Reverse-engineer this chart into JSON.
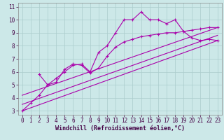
{
  "xlabel": "Windchill (Refroidissement éolien,°C)",
  "bg_color": "#cce8e8",
  "grid_color": "#aacccc",
  "line_color": "#aa00aa",
  "xlim": [
    -0.5,
    23.5
  ],
  "ylim": [
    2.7,
    11.3
  ],
  "xticks": [
    0,
    1,
    2,
    3,
    4,
    5,
    6,
    7,
    8,
    9,
    10,
    11,
    12,
    13,
    14,
    15,
    16,
    17,
    18,
    19,
    20,
    21,
    22,
    23
  ],
  "yticks": [
    3,
    4,
    5,
    6,
    7,
    8,
    9,
    10,
    11
  ],
  "series1_x": [
    0,
    1,
    2,
    3,
    4,
    5,
    6,
    7,
    8,
    9,
    10,
    11,
    12,
    13,
    14,
    15,
    16,
    17,
    18,
    19,
    20,
    21,
    22,
    23
  ],
  "series1_y": [
    3.0,
    3.6,
    4.2,
    5.0,
    5.5,
    6.0,
    6.5,
    6.6,
    6.0,
    7.5,
    8.0,
    9.0,
    10.0,
    10.0,
    10.6,
    10.0,
    10.0,
    9.7,
    10.0,
    9.1,
    8.6,
    8.4,
    8.5,
    8.4
  ],
  "series2_x": [
    2,
    3,
    4,
    5,
    6,
    7,
    8,
    9,
    10,
    11,
    12,
    13,
    14,
    15,
    16,
    17,
    18,
    19,
    20,
    21,
    22,
    23
  ],
  "series2_y": [
    5.8,
    5.0,
    5.2,
    6.2,
    6.6,
    6.5,
    5.9,
    6.3,
    7.2,
    7.9,
    8.3,
    8.5,
    8.7,
    8.8,
    8.9,
    9.0,
    9.0,
    9.1,
    9.2,
    9.3,
    9.4,
    9.4
  ],
  "line1_x": [
    0,
    23
  ],
  "line1_y": [
    3.0,
    8.4
  ],
  "line2_x": [
    0,
    23
  ],
  "line2_y": [
    3.5,
    8.8
  ],
  "line3_x": [
    0,
    23
  ],
  "line3_y": [
    4.2,
    9.4
  ],
  "tick_fontsize": 5.5,
  "xlabel_fontsize": 6.0
}
